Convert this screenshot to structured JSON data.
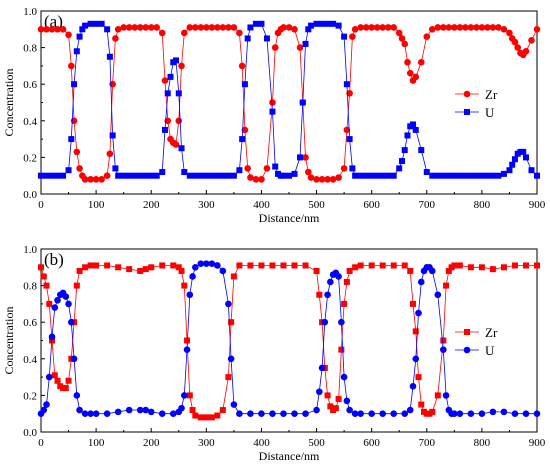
{
  "chart_data": [
    {
      "type": "line",
      "panel_label": "(a)",
      "xlabel": "Distance/nm",
      "ylabel": "Concentration",
      "xlim": [
        0,
        900
      ],
      "ylim": [
        0,
        1.0
      ],
      "xticks": [
        0,
        100,
        200,
        300,
        400,
        500,
        600,
        700,
        800,
        900
      ],
      "yticks": [
        0.0,
        0.2,
        0.4,
        0.6,
        0.8,
        1.0
      ],
      "legend_position": "right-middle",
      "series": [
        {
          "name": "Zr",
          "color": "#ff0000",
          "marker": "circle",
          "x": [
            0,
            10,
            20,
            30,
            40,
            50,
            55,
            60,
            65,
            70,
            75,
            80,
            90,
            100,
            110,
            120,
            125,
            130,
            135,
            140,
            150,
            160,
            170,
            180,
            190,
            200,
            210,
            220,
            225,
            230,
            235,
            240,
            245,
            250,
            255,
            260,
            270,
            280,
            290,
            300,
            310,
            320,
            330,
            340,
            350,
            360,
            365,
            370,
            375,
            380,
            390,
            400,
            410,
            420,
            425,
            430,
            435,
            440,
            450,
            460,
            470,
            475,
            480,
            485,
            490,
            500,
            510,
            520,
            530,
            540,
            550,
            555,
            560,
            565,
            570,
            580,
            590,
            600,
            610,
            620,
            630,
            640,
            650,
            655,
            660,
            665,
            670,
            675,
            680,
            690,
            700,
            710,
            720,
            730,
            740,
            750,
            760,
            770,
            780,
            790,
            800,
            810,
            820,
            830,
            840,
            850,
            855,
            860,
            865,
            870,
            875,
            880,
            890,
            900
          ],
          "y": [
            0.9,
            0.9,
            0.9,
            0.9,
            0.9,
            0.87,
            0.7,
            0.4,
            0.23,
            0.14,
            0.1,
            0.08,
            0.08,
            0.08,
            0.08,
            0.1,
            0.22,
            0.6,
            0.85,
            0.9,
            0.91,
            0.91,
            0.91,
            0.91,
            0.91,
            0.91,
            0.91,
            0.88,
            0.62,
            0.4,
            0.3,
            0.28,
            0.27,
            0.4,
            0.7,
            0.88,
            0.91,
            0.91,
            0.91,
            0.91,
            0.91,
            0.91,
            0.91,
            0.91,
            0.91,
            0.88,
            0.7,
            0.35,
            0.14,
            0.09,
            0.08,
            0.08,
            0.14,
            0.5,
            0.8,
            0.88,
            0.9,
            0.91,
            0.91,
            0.9,
            0.8,
            0.5,
            0.2,
            0.12,
            0.09,
            0.08,
            0.08,
            0.08,
            0.08,
            0.09,
            0.14,
            0.35,
            0.55,
            0.86,
            0.9,
            0.91,
            0.91,
            0.91,
            0.91,
            0.91,
            0.91,
            0.91,
            0.88,
            0.85,
            0.82,
            0.72,
            0.66,
            0.62,
            0.64,
            0.72,
            0.86,
            0.9,
            0.91,
            0.91,
            0.91,
            0.91,
            0.91,
            0.91,
            0.91,
            0.91,
            0.91,
            0.91,
            0.91,
            0.91,
            0.9,
            0.88,
            0.85,
            0.83,
            0.8,
            0.77,
            0.76,
            0.78,
            0.84,
            0.9
          ]
        },
        {
          "name": "U",
          "color": "#0000ff",
          "marker": "square",
          "x": [
            0,
            10,
            20,
            30,
            40,
            50,
            55,
            60,
            65,
            70,
            75,
            80,
            90,
            100,
            110,
            120,
            125,
            130,
            135,
            140,
            150,
            160,
            170,
            180,
            190,
            200,
            210,
            220,
            225,
            230,
            235,
            240,
            245,
            250,
            255,
            260,
            270,
            280,
            290,
            300,
            310,
            320,
            330,
            340,
            350,
            360,
            365,
            370,
            375,
            380,
            390,
            400,
            410,
            420,
            425,
            430,
            435,
            440,
            450,
            460,
            470,
            475,
            480,
            485,
            490,
            500,
            510,
            520,
            530,
            540,
            550,
            555,
            560,
            565,
            570,
            580,
            590,
            600,
            610,
            620,
            630,
            640,
            650,
            655,
            660,
            665,
            670,
            675,
            680,
            690,
            700,
            710,
            720,
            730,
            740,
            750,
            760,
            770,
            780,
            790,
            800,
            810,
            820,
            830,
            840,
            850,
            855,
            860,
            865,
            870,
            875,
            880,
            890,
            900
          ],
          "y": [
            0.1,
            0.1,
            0.1,
            0.1,
            0.1,
            0.13,
            0.3,
            0.6,
            0.78,
            0.86,
            0.9,
            0.92,
            0.93,
            0.93,
            0.93,
            0.9,
            0.75,
            0.32,
            0.14,
            0.1,
            0.1,
            0.1,
            0.1,
            0.1,
            0.1,
            0.1,
            0.1,
            0.12,
            0.35,
            0.55,
            0.64,
            0.72,
            0.73,
            0.55,
            0.25,
            0.12,
            0.1,
            0.1,
            0.1,
            0.1,
            0.1,
            0.1,
            0.1,
            0.1,
            0.1,
            0.13,
            0.3,
            0.6,
            0.85,
            0.91,
            0.93,
            0.93,
            0.85,
            0.45,
            0.15,
            0.11,
            0.1,
            0.1,
            0.1,
            0.11,
            0.2,
            0.5,
            0.82,
            0.9,
            0.92,
            0.93,
            0.93,
            0.93,
            0.93,
            0.92,
            0.86,
            0.6,
            0.3,
            0.14,
            0.1,
            0.1,
            0.1,
            0.1,
            0.1,
            0.1,
            0.1,
            0.1,
            0.14,
            0.18,
            0.24,
            0.32,
            0.37,
            0.38,
            0.35,
            0.24,
            0.12,
            0.1,
            0.1,
            0.1,
            0.1,
            0.1,
            0.1,
            0.1,
            0.1,
            0.1,
            0.1,
            0.1,
            0.1,
            0.1,
            0.11,
            0.13,
            0.16,
            0.19,
            0.22,
            0.23,
            0.23,
            0.2,
            0.13,
            0.1
          ]
        }
      ]
    },
    {
      "type": "line",
      "panel_label": "(b)",
      "xlabel": "Distance/nm",
      "ylabel": "Concentration",
      "xlim": [
        0,
        900
      ],
      "ylim": [
        0,
        1.0
      ],
      "xticks": [
        0,
        100,
        200,
        300,
        400,
        500,
        600,
        700,
        800,
        900
      ],
      "yticks": [
        0.0,
        0.2,
        0.4,
        0.6,
        0.8,
        1.0
      ],
      "legend_position": "right-middle",
      "series": [
        {
          "name": "Zr",
          "color": "#ff0000",
          "marker": "square",
          "x": [
            0,
            5,
            10,
            15,
            20,
            25,
            30,
            35,
            40,
            45,
            50,
            55,
            60,
            65,
            70,
            80,
            90,
            100,
            120,
            140,
            160,
            180,
            190,
            200,
            220,
            240,
            250,
            255,
            260,
            265,
            270,
            275,
            280,
            290,
            300,
            310,
            320,
            330,
            340,
            345,
            350,
            360,
            380,
            400,
            420,
            440,
            460,
            480,
            500,
            505,
            510,
            515,
            520,
            525,
            530,
            535,
            540,
            545,
            550,
            555,
            560,
            570,
            580,
            600,
            620,
            640,
            660,
            670,
            675,
            680,
            685,
            690,
            695,
            700,
            705,
            710,
            720,
            730,
            735,
            740,
            745,
            750,
            760,
            780,
            800,
            820,
            840,
            860,
            880,
            900
          ],
          "y": [
            0.9,
            0.85,
            0.8,
            0.7,
            0.5,
            0.31,
            0.28,
            0.25,
            0.24,
            0.24,
            0.28,
            0.4,
            0.6,
            0.8,
            0.88,
            0.9,
            0.91,
            0.91,
            0.91,
            0.9,
            0.89,
            0.88,
            0.89,
            0.9,
            0.91,
            0.91,
            0.9,
            0.88,
            0.8,
            0.5,
            0.2,
            0.12,
            0.09,
            0.08,
            0.08,
            0.08,
            0.09,
            0.12,
            0.3,
            0.6,
            0.85,
            0.91,
            0.91,
            0.91,
            0.91,
            0.91,
            0.91,
            0.91,
            0.88,
            0.75,
            0.6,
            0.35,
            0.2,
            0.14,
            0.12,
            0.13,
            0.18,
            0.45,
            0.7,
            0.82,
            0.88,
            0.9,
            0.91,
            0.91,
            0.91,
            0.91,
            0.91,
            0.88,
            0.7,
            0.55,
            0.3,
            0.15,
            0.11,
            0.1,
            0.1,
            0.11,
            0.2,
            0.5,
            0.8,
            0.88,
            0.9,
            0.91,
            0.91,
            0.9,
            0.9,
            0.89,
            0.9,
            0.91,
            0.91,
            0.91
          ]
        },
        {
          "name": "U",
          "color": "#0000ff",
          "marker": "circle",
          "x": [
            0,
            5,
            10,
            15,
            20,
            25,
            30,
            35,
            40,
            45,
            50,
            55,
            60,
            65,
            70,
            80,
            90,
            100,
            120,
            140,
            160,
            180,
            190,
            200,
            220,
            240,
            250,
            255,
            260,
            265,
            270,
            275,
            280,
            290,
            300,
            310,
            320,
            330,
            340,
            345,
            350,
            360,
            380,
            400,
            420,
            440,
            460,
            480,
            500,
            505,
            510,
            515,
            520,
            525,
            530,
            535,
            540,
            545,
            550,
            555,
            560,
            570,
            580,
            600,
            620,
            640,
            660,
            670,
            675,
            680,
            685,
            690,
            695,
            700,
            705,
            710,
            720,
            730,
            735,
            740,
            745,
            750,
            760,
            780,
            800,
            820,
            840,
            860,
            880,
            900
          ],
          "y": [
            0.1,
            0.12,
            0.15,
            0.3,
            0.52,
            0.68,
            0.72,
            0.75,
            0.76,
            0.74,
            0.7,
            0.6,
            0.4,
            0.2,
            0.12,
            0.1,
            0.1,
            0.1,
            0.1,
            0.11,
            0.12,
            0.12,
            0.12,
            0.11,
            0.1,
            0.1,
            0.11,
            0.13,
            0.2,
            0.45,
            0.75,
            0.85,
            0.9,
            0.92,
            0.92,
            0.92,
            0.91,
            0.88,
            0.7,
            0.4,
            0.15,
            0.1,
            0.1,
            0.1,
            0.1,
            0.1,
            0.1,
            0.1,
            0.12,
            0.22,
            0.35,
            0.6,
            0.75,
            0.82,
            0.86,
            0.87,
            0.85,
            0.6,
            0.3,
            0.17,
            0.12,
            0.1,
            0.1,
            0.1,
            0.1,
            0.1,
            0.1,
            0.12,
            0.25,
            0.4,
            0.65,
            0.82,
            0.88,
            0.9,
            0.9,
            0.88,
            0.75,
            0.45,
            0.2,
            0.12,
            0.1,
            0.1,
            0.1,
            0.1,
            0.1,
            0.11,
            0.11,
            0.1,
            0.1,
            0.1
          ]
        }
      ]
    }
  ]
}
